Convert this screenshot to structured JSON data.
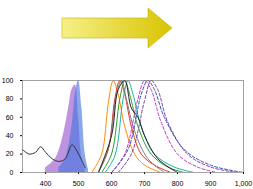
{
  "chart_data": {
    "type": "line",
    "xlim": [
      330,
      1000
    ],
    "xticks": [
      400,
      500,
      600,
      700,
      800,
      900,
      1000
    ],
    "ylim": [
      0,
      100
    ],
    "yticks": [
      0,
      20,
      40,
      60,
      80,
      100
    ],
    "grid": false,
    "series": [
      {
        "type": "area",
        "color": "#9b59d0",
        "x": [
          400,
          430,
          450,
          470,
          480,
          490,
          500,
          510,
          520
        ],
        "values": [
          5,
          15,
          35,
          70,
          90,
          95,
          60,
          15,
          2
        ]
      },
      {
        "type": "area",
        "color": "#4a78e0",
        "x": [
          440,
          460,
          480,
          490,
          500,
          510,
          520,
          530
        ],
        "values": [
          5,
          15,
          50,
          85,
          100,
          70,
          20,
          3
        ]
      },
      {
        "type": "line",
        "color": "#333333",
        "line_style": "solid",
        "x": [
          330,
          350,
          370,
          385,
          400,
          420,
          440,
          460,
          480,
          500,
          520
        ],
        "values": [
          25,
          20,
          22,
          28,
          22,
          15,
          12,
          15,
          30,
          20,
          5
        ]
      },
      {
        "type": "line",
        "color": "#ff8c00",
        "line_style": "solid",
        "x": [
          540,
          570,
          590,
          605,
          620,
          640,
          670,
          700,
          750
        ],
        "values": [
          0,
          20,
          75,
          100,
          85,
          50,
          20,
          8,
          0
        ]
      },
      {
        "type": "line",
        "color": "#e03030",
        "line_style": "solid",
        "x": [
          560,
          590,
          610,
          625,
          640,
          660,
          690,
          730,
          780
        ],
        "values": [
          0,
          25,
          80,
          100,
          85,
          50,
          20,
          8,
          0
        ]
      },
      {
        "type": "line",
        "color": "#2ca02c",
        "line_style": "solid",
        "x": [
          570,
          600,
          625,
          640,
          655,
          680,
          720,
          770,
          820
        ],
        "values": [
          0,
          20,
          80,
          100,
          85,
          50,
          20,
          6,
          0
        ]
      },
      {
        "type": "line",
        "color": "#20b2aa",
        "line_style": "solid",
        "x": [
          580,
          610,
          635,
          650,
          665,
          690,
          730,
          790,
          850
        ],
        "values": [
          0,
          18,
          80,
          100,
          85,
          50,
          20,
          6,
          0
        ]
      },
      {
        "type": "line",
        "color": "#808080",
        "line_style": "solid",
        "x": [
          560,
          590,
          615,
          630,
          645,
          670,
          710,
          760
        ],
        "values": [
          0,
          25,
          85,
          100,
          80,
          45,
          15,
          0
        ]
      },
      {
        "type": "line",
        "color": "#cc33cc",
        "line_style": "dashed",
        "x": [
          600,
          640,
          680,
          700,
          720,
          750,
          800,
          860,
          920
        ],
        "values": [
          0,
          20,
          80,
          100,
          90,
          55,
          20,
          6,
          0
        ]
      },
      {
        "type": "line",
        "color": "#7b3fa0",
        "line_style": "dashed",
        "x": [
          620,
          660,
          700,
          720,
          740,
          770,
          830,
          900,
          980
        ],
        "values": [
          0,
          20,
          78,
          100,
          90,
          55,
          20,
          6,
          0
        ]
      },
      {
        "type": "line",
        "color": "#222222",
        "line_style": "solid",
        "x": [
          560,
          600,
          620,
          640,
          660,
          680,
          700,
          740,
          800
        ],
        "values": [
          0,
          40,
          90,
          100,
          70,
          60,
          40,
          15,
          0
        ]
      },
      {
        "type": "line",
        "color": "#3050c0",
        "line_style": "dashed",
        "x": [
          600,
          650,
          690,
          710,
          730,
          760,
          820,
          900,
          1000
        ],
        "values": [
          0,
          25,
          85,
          100,
          90,
          60,
          25,
          8,
          0
        ]
      }
    ]
  }
}
